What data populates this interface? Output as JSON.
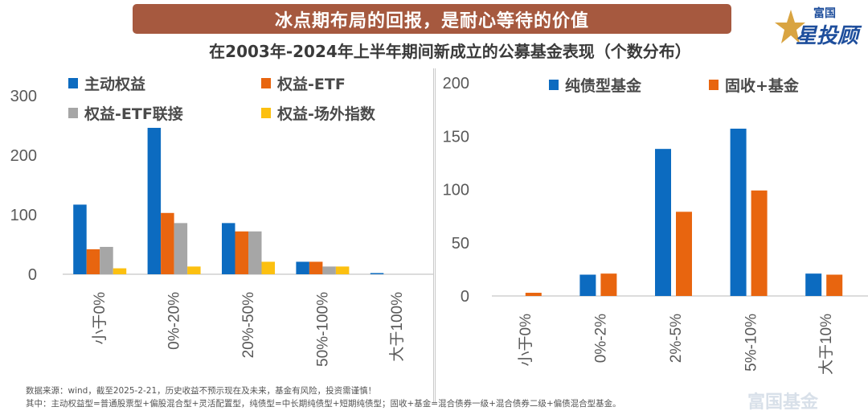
{
  "banner": {
    "title": "冰点期布局的回报，是耐心等待的价值"
  },
  "subtitle": "在2003年-2024年上半年期间新成立的公募基金表现（个数分布）",
  "logo": {
    "small_text": "富国",
    "big_text": "星投顾",
    "icon": "star-icon"
  },
  "watermark": {
    "text": "富国基金"
  },
  "notes": [
    "数据来源：wind，截至2025-2-21，历史收益不预示现在及未来，基金有风险，投资需谨慎！",
    "其中：主动权益型=普通股票型+偏股混合型+灵活配置型，纯债型=中长期纯债型+短期纯债型；固收+基金=混合债券一级+混合债券二级+偏债混合型基金。"
  ],
  "colors": {
    "blue": "#0c6bc0",
    "orange": "#e8650f",
    "gray": "#a6a6a6",
    "yellow": "#fcc010",
    "banner": "#a6593f"
  },
  "chart_data": [
    {
      "type": "bar",
      "title": "",
      "categories": [
        "小于0%",
        "0%-20%",
        "20%-50%",
        "50%-100%",
        "大于100%"
      ],
      "series": [
        {
          "name": "主动权益",
          "color": "#0c6bc0",
          "values": [
            117,
            246,
            86,
            21,
            2
          ]
        },
        {
          "name": "权益-ETF",
          "color": "#e8650f",
          "values": [
            42,
            103,
            72,
            21,
            0
          ]
        },
        {
          "name": "权益-ETF联接",
          "color": "#a6a6a6",
          "values": [
            46,
            86,
            72,
            13,
            0
          ]
        },
        {
          "name": "权益-场外指数",
          "color": "#fcc010",
          "values": [
            10,
            13,
            21,
            13,
            0
          ]
        }
      ],
      "yticks": [
        "0",
        "100",
        "200",
        "300"
      ],
      "ylim": [
        0,
        300
      ],
      "xlabel": "",
      "ylabel": "",
      "grid": false,
      "legend": "top"
    },
    {
      "type": "bar",
      "title": "",
      "categories": [
        "小于0%",
        "0%-2%",
        "2%-5%",
        "5%-10%",
        "大于10%"
      ],
      "series": [
        {
          "name": "纯债型基金",
          "color": "#0c6bc0",
          "values": [
            0,
            20,
            138,
            157,
            21
          ]
        },
        {
          "name": "固收+基金",
          "color": "#e8650f",
          "values": [
            3,
            21,
            79,
            99,
            20
          ]
        }
      ],
      "yticks": [
        "0",
        "50",
        "100",
        "150",
        "200"
      ],
      "ylim": [
        0,
        200
      ],
      "xlabel": "",
      "ylabel": "",
      "grid": false,
      "legend": "top"
    }
  ]
}
